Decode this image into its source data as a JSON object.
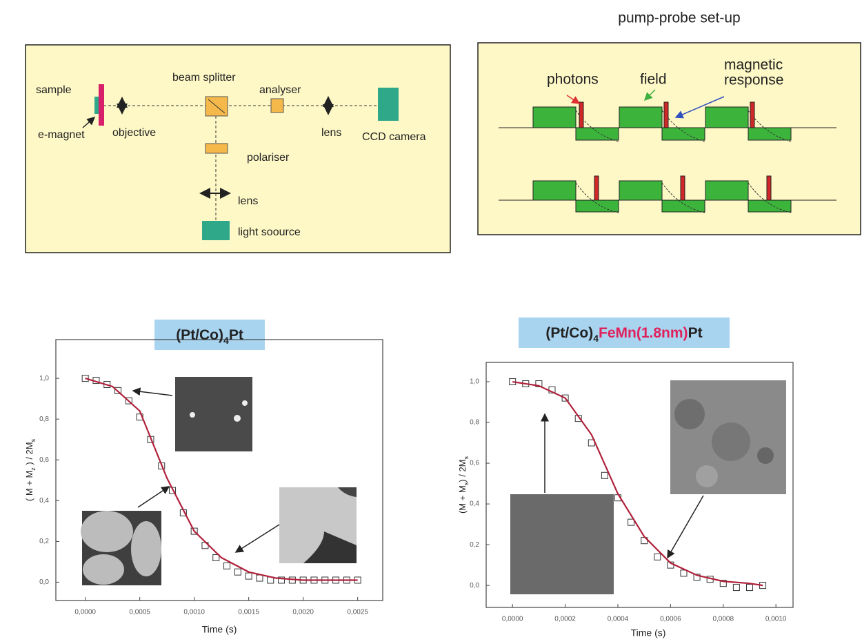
{
  "setup_diagram": {
    "labels": [
      "sample",
      "e-magnet",
      "objective",
      "beam splitter",
      "analyser",
      "lens",
      "CCD camera",
      "polariser",
      "lens",
      "light soource"
    ]
  },
  "pump_probe": {
    "title": "pump-probe set-up",
    "labels": [
      "photons",
      "field",
      "magnetic",
      "response"
    ]
  },
  "chart_data": [
    {
      "type": "scatter",
      "title": [
        "(Pt/Co)",
        "4",
        "Pt"
      ],
      "title_colors": [
        "#222",
        "#222",
        "#222"
      ],
      "xlabel": "Time (s)",
      "ylabel": [
        "( M + M",
        "z",
        " ) / 2M",
        "s"
      ],
      "xlim": [
        -0.00027,
        0.00273
      ],
      "ylim": [
        -0.09,
        1.19
      ],
      "xticks": [
        {
          "value": 0,
          "label": "0,0000"
        },
        {
          "value": 0.0005,
          "label": "0,0005"
        },
        {
          "value": 0.001,
          "label": "0,0010"
        },
        {
          "value": 0.0015,
          "label": "0,0015"
        },
        {
          "value": 0.002,
          "label": "0,0020"
        },
        {
          "value": 0.0025,
          "label": "0,0025"
        }
      ],
      "yticks": [
        {
          "value": 0,
          "label": "0,0"
        },
        {
          "value": 0.2,
          "label": "0,2"
        },
        {
          "value": 0.4,
          "label": "0,4"
        },
        {
          "value": 0.6,
          "label": "0,6"
        },
        {
          "value": 0.8,
          "label": "0,8"
        },
        {
          "value": 1,
          "label": "1,0"
        }
      ],
      "series": [
        {
          "kind": "markers",
          "color": "#333333",
          "x": [
            0,
            0.0001,
            0.0002,
            0.0003,
            0.0004,
            0.0005,
            0.0006,
            0.0007,
            0.0008,
            0.0009,
            0.001,
            0.0011,
            0.0012,
            0.0013,
            0.0014,
            0.0015,
            0.0016,
            0.0017,
            0.0018,
            0.0019,
            0.002,
            0.0021,
            0.0022,
            0.0023,
            0.0024,
            0.0025
          ],
          "values": [
            1.0,
            0.99,
            0.97,
            0.94,
            0.89,
            0.81,
            0.7,
            0.57,
            0.45,
            0.34,
            0.25,
            0.18,
            0.12,
            0.08,
            0.05,
            0.03,
            0.02,
            0.01,
            0.01,
            0.01,
            0.01,
            0.01,
            0.01,
            0.01,
            0.01,
            0.01
          ]
        },
        {
          "kind": "line",
          "color": "#b0203a",
          "x": [
            0,
            0.00025,
            0.0005,
            0.00075,
            0.001,
            0.00125,
            0.0015,
            0.00175,
            0.002,
            0.00225,
            0.0025
          ],
          "values": [
            1.0,
            0.96,
            0.84,
            0.51,
            0.25,
            0.12,
            0.05,
            0.02,
            0.01,
            0.01,
            0.01
          ]
        }
      ]
    },
    {
      "type": "scatter",
      "title": [
        "(Pt/Co)",
        "4",
        "FeMn(1.8nm)",
        "Pt"
      ],
      "title_colors": [
        "#222",
        "#222",
        "#e0205a",
        "#222"
      ],
      "xlabel": "Time (s)",
      "ylabel": [
        "(M + M",
        "s",
        ") / 2M",
        "s"
      ],
      "xlim": [
        -0.0001,
        0.001065
      ],
      "ylim": [
        -0.108,
        1.095
      ],
      "xticks": [
        {
          "value": 0,
          "label": "0,0000"
        },
        {
          "value": 0.0002,
          "label": "0,0002"
        },
        {
          "value": 0.0004,
          "label": "0,0004"
        },
        {
          "value": 0.0006,
          "label": "0,0006"
        },
        {
          "value": 0.0008,
          "label": "0,0008"
        },
        {
          "value": 0.001,
          "label": "0,0010"
        }
      ],
      "yticks": [
        {
          "value": 0,
          "label": "0,0"
        },
        {
          "value": 0.2,
          "label": "0,2"
        },
        {
          "value": 0.4,
          "label": "0,4"
        },
        {
          "value": 0.6,
          "label": "0,6"
        },
        {
          "value": 0.8,
          "label": "0,8"
        },
        {
          "value": 1,
          "label": "1,0"
        }
      ],
      "series": [
        {
          "kind": "markers",
          "color": "#333333",
          "x": [
            0,
            5e-05,
            0.0001,
            0.00015,
            0.0002,
            0.00025,
            0.0003,
            0.00035,
            0.0004,
            0.00045,
            0.0005,
            0.00055,
            0.0006,
            0.00065,
            0.0007,
            0.00075,
            0.0008,
            0.00085,
            0.0009,
            0.00095
          ],
          "values": [
            1.0,
            0.99,
            0.99,
            0.96,
            0.92,
            0.82,
            0.7,
            0.54,
            0.43,
            0.31,
            0.22,
            0.14,
            0.1,
            0.06,
            0.04,
            0.03,
            0.01,
            -0.01,
            -0.01,
            0.0
          ]
        },
        {
          "kind": "line",
          "color": "#b0203a",
          "x": [
            0,
            0.0001,
            0.0002,
            0.0003,
            0.0004,
            0.0005,
            0.0006,
            0.0007,
            0.0008,
            0.0009,
            0.00095
          ],
          "values": [
            1.0,
            0.98,
            0.92,
            0.74,
            0.45,
            0.24,
            0.11,
            0.05,
            0.02,
            0.01,
            0.0
          ]
        }
      ]
    }
  ]
}
